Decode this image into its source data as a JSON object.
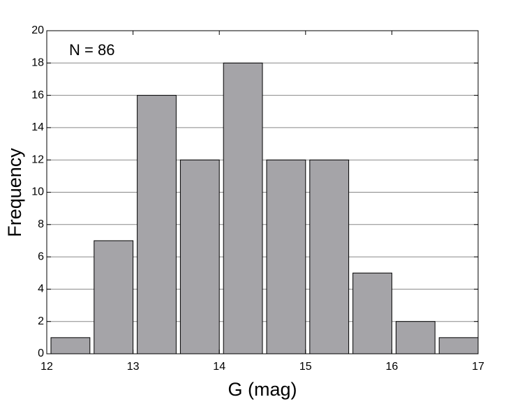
{
  "chart_data": {
    "type": "histogram",
    "annotation": "N = 86",
    "x_label": "G (mag)",
    "y_label": "Frequency",
    "bins": [
      12,
      12.5,
      13,
      13.5,
      14,
      14.5,
      15,
      15.5,
      16,
      16.5,
      17
    ],
    "values": [
      1,
      7,
      16,
      12,
      18,
      12,
      12,
      5,
      2,
      1
    ],
    "color": "#a5a4a8",
    "xlim": [
      12,
      17
    ],
    "xticks": [
      12,
      13,
      14,
      15,
      16,
      17
    ],
    "ylim": [
      0,
      20
    ],
    "yticks": [
      0,
      2,
      4,
      6,
      8,
      10,
      12,
      14,
      16,
      18,
      20
    ],
    "grid": true
  }
}
